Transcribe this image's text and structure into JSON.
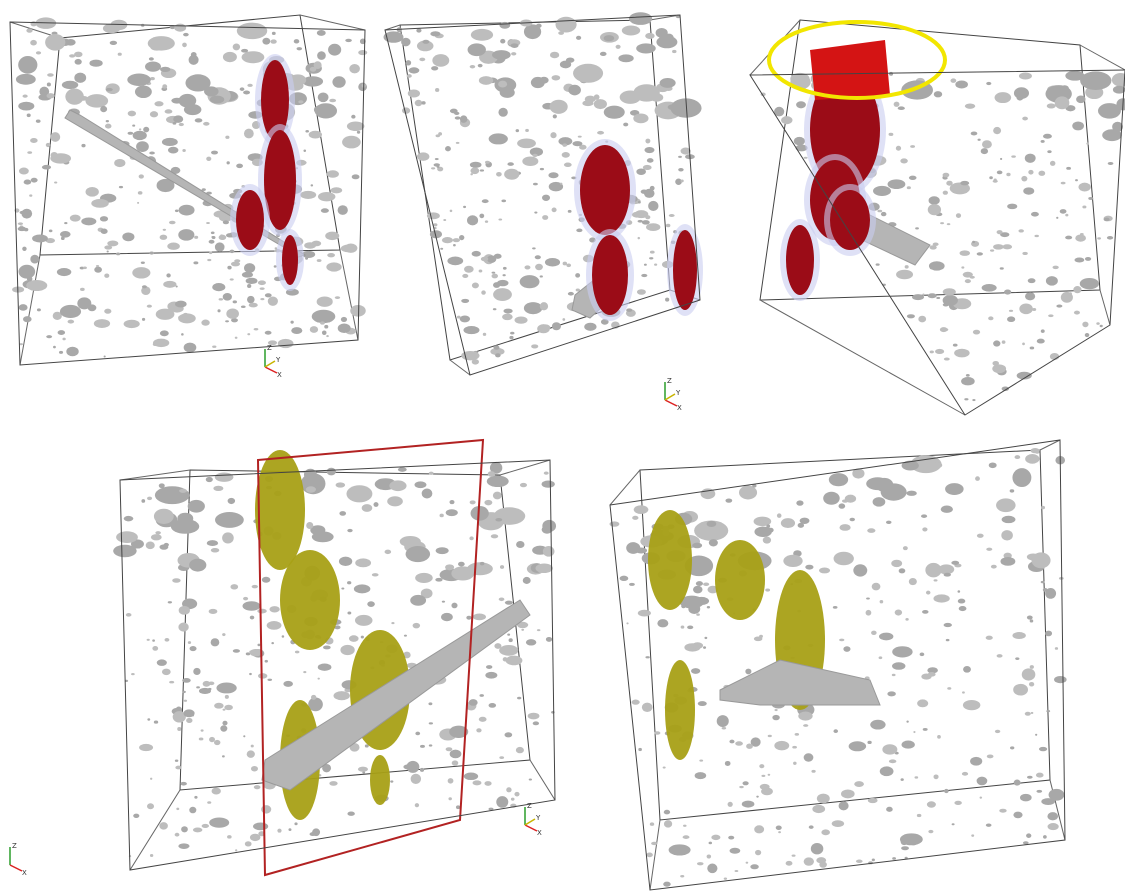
{
  "axis_triads": [
    {
      "z": "Z",
      "y": "Y",
      "x": "X"
    },
    {
      "z": "Z",
      "y": "Y",
      "x": "X"
    },
    {
      "z": "Z",
      "x": "X"
    },
    {
      "z": "Z",
      "y": "Y",
      "x": "X"
    }
  ]
}
